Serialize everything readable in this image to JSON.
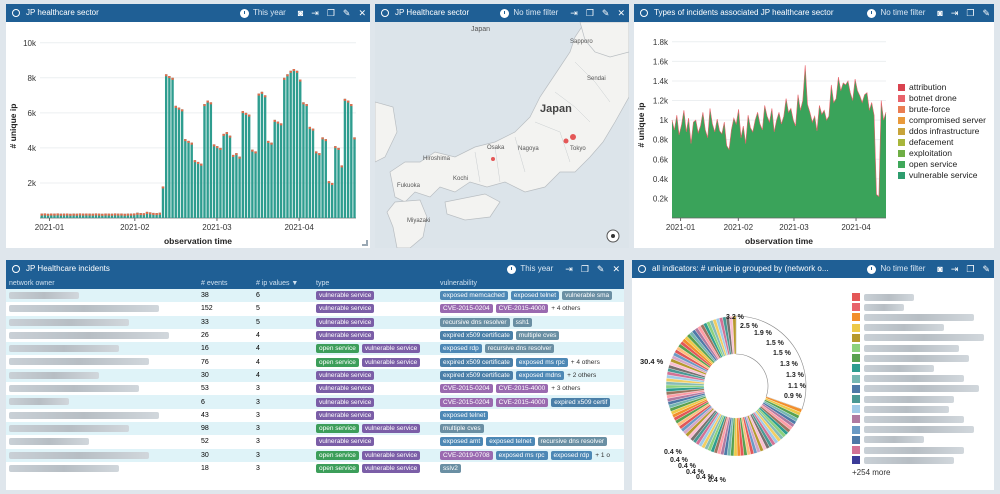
{
  "panels": {
    "bar_panel": {
      "title": "JP healthcare sector",
      "filter": "This year"
    },
    "map_panel": {
      "title": "JP Healthcare sector",
      "filter": "No time filter"
    },
    "area_panel": {
      "title": "Types of incidents associated JP healthcare sector",
      "filter": "No time filter"
    },
    "table_panel": {
      "title": "JP Healthcare incidents",
      "filter": "This year"
    },
    "pie_panel": {
      "title": "all indicators: # unique ip grouped by (network o...",
      "filter": "No time filter"
    }
  },
  "map": {
    "labels": {
      "japan_top": "Japan",
      "japan_main": "Japan",
      "sapporo": "Sapporo",
      "sendai": "Sendai",
      "tokyo": "Tokyo",
      "osaka": "Osaka",
      "hiroshima": "Hiroshima",
      "fukuoka": "Fukuoka",
      "kochi": "Kochi",
      "miyazaki": "Miyazaki",
      "nagoya": "Nagoya"
    }
  },
  "chart_data": [
    {
      "type": "bar",
      "ylabel": "# unique ip",
      "xlabel": "observation time",
      "y_ticks": [
        "2k",
        "4k",
        "6k",
        "8k",
        "10k"
      ],
      "x_ticks": [
        "2021-01",
        "2021-02",
        "2021-03",
        "2021-04"
      ],
      "ylim": [
        0,
        10500
      ],
      "values": [
        250,
        260,
        240,
        255,
        250,
        260,
        245,
        250,
        255,
        240,
        250,
        245,
        260,
        250,
        255,
        250,
        245,
        260,
        250,
        240,
        255,
        250,
        245,
        260,
        250,
        255,
        240,
        250,
        250,
        260,
        300,
        280,
        270,
        350,
        320,
        290,
        280,
        300,
        1800,
        8200,
        8100,
        8000,
        6400,
        6300,
        6200,
        4500,
        4400,
        4300,
        3300,
        3200,
        3100,
        6500,
        6700,
        6600,
        4200,
        4100,
        4000,
        4800,
        4900,
        4700,
        3600,
        3700,
        3500,
        6100,
        6000,
        5900,
        3900,
        3800,
        7100,
        7200,
        7000,
        4400,
        4300,
        5600,
        5500,
        5400,
        8000,
        8200,
        8400,
        8500,
        8400,
        7900,
        6600,
        6500,
        5200,
        5100,
        3800,
        3700,
        4600,
        4500,
        2100,
        2000,
        4100,
        4000,
        3000,
        6800,
        6700,
        6500,
        4600
      ]
    },
    {
      "type": "area",
      "ylabel": "# unique ip",
      "xlabel": "observation time",
      "y_ticks": [
        "0.2k",
        "0.4k",
        "0.6k",
        "0.8k",
        "1k",
        "1.2k",
        "1.4k",
        "1.6k",
        "1.8k"
      ],
      "x_ticks": [
        "2021-01",
        "2021-02",
        "2021-03",
        "2021-04"
      ],
      "ylim": [
        0,
        1900
      ],
      "legend_position": "right",
      "series": [
        {
          "name": "attribution",
          "color": "#d9434f"
        },
        {
          "name": "botnet drone",
          "color": "#e8636b"
        },
        {
          "name": "brute-force",
          "color": "#ea7d52"
        },
        {
          "name": "compromised server",
          "color": "#e99a3b"
        },
        {
          "name": "ddos infrastructure",
          "color": "#c8a43a"
        },
        {
          "name": "defacement",
          "color": "#a8b63b"
        },
        {
          "name": "exploitation",
          "color": "#6fae45"
        },
        {
          "name": "open service",
          "color": "#3fa85a"
        },
        {
          "name": "vulnerable service",
          "color": "#2e9d6e"
        }
      ],
      "values": [
        1000,
        900,
        1050,
        850,
        950,
        1100,
        880,
        1020,
        760,
        980,
        1000,
        870,
        940,
        1080,
        900,
        820,
        1120,
        960,
        880,
        1010,
        890,
        860,
        980,
        740,
        700,
        900,
        1020,
        960,
        1110,
        820,
        940,
        760,
        1050,
        920,
        880,
        1000,
        1080,
        960,
        900,
        1150,
        1040,
        980,
        1120,
        880,
        1000,
        1080,
        960,
        1040,
        1220,
        1080,
        1120,
        1000,
        940,
        1260,
        1100,
        1200,
        1560,
        1160,
        1080,
        980,
        1040,
        890,
        1150,
        1060,
        1100,
        1000,
        1040,
        1360,
        1180,
        1220,
        1440,
        1300,
        1380,
        1360,
        1400,
        1280,
        1200,
        1420,
        1300,
        1250,
        1180,
        1260,
        1280,
        1100,
        1180,
        1050,
        240,
        220,
        1200,
        1000,
        1080
      ]
    },
    {
      "type": "pie",
      "labels_pct": [
        "3.2 %",
        "2.5 %",
        "1.9 %",
        "1.5 %",
        "1.5 %",
        "1.3 %",
        "1.3 %",
        "1.1 %",
        "0.9 %",
        "30.4 %",
        "0.4 %",
        "0.4 %",
        "0.4 %",
        "0.4 %",
        "0.4 %",
        "0.4 %"
      ],
      "largest_slice_pct": 30.4,
      "legend_more": "+254 more"
    }
  ],
  "table": {
    "columns": [
      "network owner",
      "# events",
      "# ip values ▼",
      "type",
      "vulnerability"
    ],
    "rows": [
      {
        "events": "38",
        "ips": "6",
        "types": [
          "vulnerable service"
        ],
        "vulns": [
          "exposed memcached",
          "exposed telnet",
          "vulnerable sma"
        ],
        "more": ""
      },
      {
        "events": "152",
        "ips": "5",
        "types": [
          "vulnerable service"
        ],
        "vulns": [
          "CVE-2015-0204",
          "CVE-2015-4000"
        ],
        "more": "+ 4 others"
      },
      {
        "events": "33",
        "ips": "5",
        "types": [
          "vulnerable service"
        ],
        "vulns": [
          "recursive dns resolver",
          "ssh1"
        ],
        "more": ""
      },
      {
        "events": "26",
        "ips": "4",
        "types": [
          "vulnerable service"
        ],
        "vulns": [
          "expired x509 certificate",
          "multiple cves"
        ],
        "more": ""
      },
      {
        "events": "16",
        "ips": "4",
        "types": [
          "open service",
          "vulnerable service"
        ],
        "vulns": [
          "exposed rdp",
          "recursive dns resolver"
        ],
        "more": ""
      },
      {
        "events": "76",
        "ips": "4",
        "types": [
          "open service",
          "vulnerable service"
        ],
        "vulns": [
          "expired x509 certificate",
          "exposed ms rpc"
        ],
        "more": "+ 4 others"
      },
      {
        "events": "30",
        "ips": "4",
        "types": [
          "vulnerable service"
        ],
        "vulns": [
          "expired x509 certificate",
          "exposed mdns"
        ],
        "more": "+ 2 others"
      },
      {
        "events": "53",
        "ips": "3",
        "types": [
          "vulnerable service"
        ],
        "vulns": [
          "CVE-2015-0204",
          "CVE-2015-4000"
        ],
        "more": "+ 3 others"
      },
      {
        "events": "6",
        "ips": "3",
        "types": [
          "vulnerable service"
        ],
        "vulns": [
          "CVE-2015-0204",
          "CVE-2015-4000",
          "expired x509 certif"
        ],
        "more": ""
      },
      {
        "events": "43",
        "ips": "3",
        "types": [
          "vulnerable service"
        ],
        "vulns": [
          "exposed telnet"
        ],
        "more": ""
      },
      {
        "events": "98",
        "ips": "3",
        "types": [
          "open service",
          "vulnerable service"
        ],
        "vulns": [
          "multiple cves"
        ],
        "more": ""
      },
      {
        "events": "52",
        "ips": "3",
        "types": [
          "vulnerable service"
        ],
        "vulns": [
          "exposed amt",
          "exposed telnet",
          "recursive dns resolver"
        ],
        "more": ""
      },
      {
        "events": "30",
        "ips": "3",
        "types": [
          "open service",
          "vulnerable service"
        ],
        "vulns": [
          "CVE-2019-0708",
          "exposed ms rpc",
          "exposed rdp"
        ],
        "more": "+ 1 o"
      },
      {
        "events": "18",
        "ips": "3",
        "types": [
          "open service",
          "vulnerable service"
        ],
        "vulns": [
          "sslv2"
        ],
        "more": ""
      }
    ]
  },
  "colors": {
    "header": "#1f5f95",
    "bar_fill": "#2e9d8f",
    "bar_top": "#e36b4a",
    "area_fill": "#3aa35a",
    "tag_vulnerable_service": "#7b5ea7",
    "tag_open_service": "#3c9e5a",
    "tag_cve": "#9a6ab0",
    "tag_exposed": "#4d88b5",
    "tag_expired": "#4a7fa8",
    "tag_other": "#6a8fa3"
  }
}
